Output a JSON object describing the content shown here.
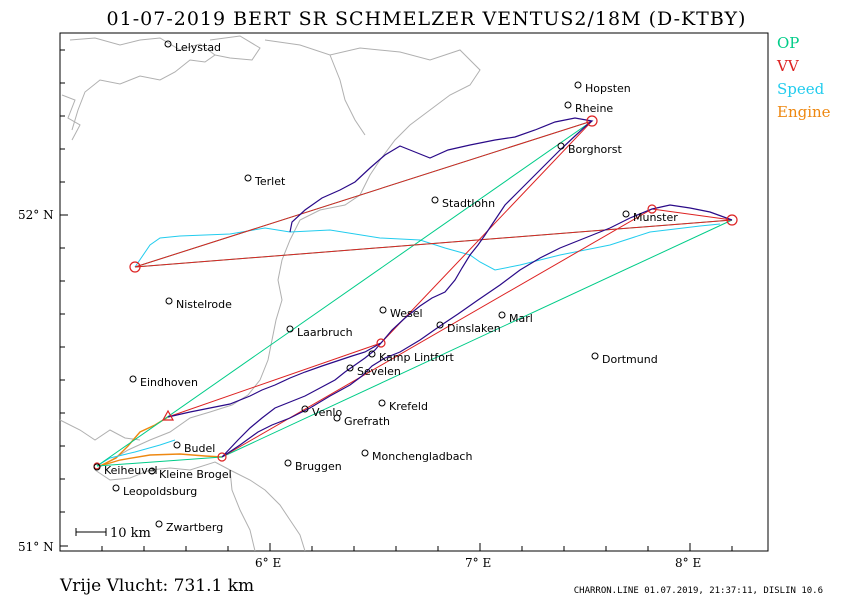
{
  "header": {
    "title": "01-07-2019   BERT SR SCHMELZER   VENTUS2/18M (D-KTBY)"
  },
  "legend": [
    {
      "label": "OP",
      "color": "#00cc88"
    },
    {
      "label": "VV",
      "color": "#dd2222"
    },
    {
      "label": "Speed",
      "color": "#22ccee"
    },
    {
      "label": "Engine",
      "color": "#ee8811"
    }
  ],
  "axes": {
    "x_ticks": [
      "6° E",
      "7° E",
      "8° E"
    ],
    "y_ticks": [
      "52° N",
      "51° N"
    ]
  },
  "scale_bar": {
    "label": "10 km"
  },
  "places": [
    {
      "name": "Lelystad"
    },
    {
      "name": "Hopsten"
    },
    {
      "name": "Rheine"
    },
    {
      "name": "Borghorst"
    },
    {
      "name": "Terlet"
    },
    {
      "name": "Stadtlohn"
    },
    {
      "name": "Munster"
    },
    {
      "name": "Nistelrode"
    },
    {
      "name": "Wesel"
    },
    {
      "name": "Marl"
    },
    {
      "name": "Laarbruch"
    },
    {
      "name": "Dinslaken"
    },
    {
      "name": "Kamp Lintfort"
    },
    {
      "name": "Dortmund"
    },
    {
      "name": "Eindhoven"
    },
    {
      "name": "Sevelen"
    },
    {
      "name": "Krefeld"
    },
    {
      "name": "Venlo"
    },
    {
      "name": "Grefrath"
    },
    {
      "name": "Budel"
    },
    {
      "name": "Keiheuvel"
    },
    {
      "name": "Kleine Brogel"
    },
    {
      "name": "Bruggen"
    },
    {
      "name": "Monchengladbach"
    },
    {
      "name": "Leopoldsburg"
    },
    {
      "name": "Zwartberg"
    }
  ],
  "summary": {
    "distance": "Vrije Vlucht:  731.1 km"
  },
  "footer": {
    "text": "CHARRON.LINE 01.07.2019, 21:37:11, DISLIN 10.6"
  }
}
